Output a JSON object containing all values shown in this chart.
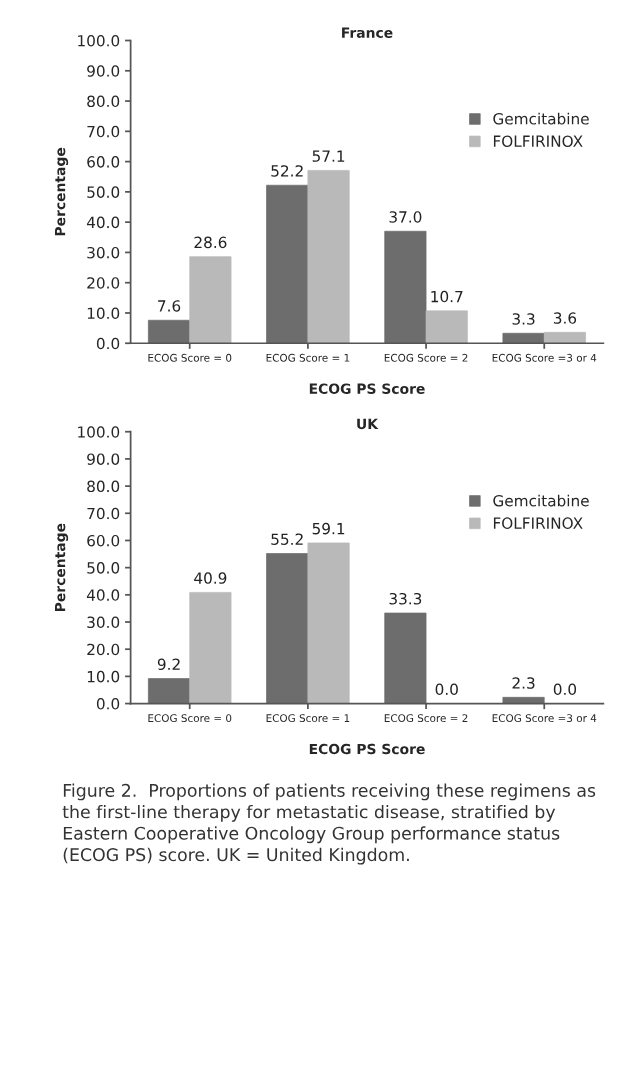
{
  "chart_data": [
    {
      "type": "bar",
      "title": "France",
      "xlabel": "ECOG PS Score",
      "ylabel": "Percentage",
      "categories": [
        "ECOG Score = 0",
        "ECOG Score = 1",
        "ECOG Score = 2",
        "ECOG Score =3 or 4"
      ],
      "series": [
        {
          "name": "Gemcitabine",
          "color": "#6d6d6d",
          "values": [
            7.6,
            52.2,
            37.0,
            3.3
          ],
          "value_labels": [
            "7.6",
            "52.2",
            "37.0",
            "3.3"
          ]
        },
        {
          "name": "FOLFIRINOX",
          "color": "#b9b9b9",
          "values": [
            28.6,
            57.1,
            10.7,
            3.6
          ],
          "value_labels": [
            "28.6",
            "57.1",
            "10.7",
            "3.6"
          ]
        }
      ],
      "ylim": [
        0,
        100
      ],
      "yticks": [
        {
          "value": 0,
          "label": "0.0"
        },
        {
          "value": 10,
          "label": "10.0"
        },
        {
          "value": 20,
          "label": "20.0"
        },
        {
          "value": 30,
          "label": "30.0"
        },
        {
          "value": 40,
          "label": "40.0"
        },
        {
          "value": 50,
          "label": "50.0"
        },
        {
          "value": 60,
          "label": "60.0"
        },
        {
          "value": 70,
          "label": "70.0"
        },
        {
          "value": 80,
          "label": "80.0"
        },
        {
          "value": 90,
          "label": "90.0"
        },
        {
          "value": 100,
          "label": "100.0"
        }
      ],
      "legend": "right"
    },
    {
      "type": "bar",
      "title": "UK",
      "xlabel": "ECOG PS Score",
      "ylabel": "Percentage",
      "categories": [
        "ECOG Score = 0",
        "ECOG Score = 1",
        "ECOG Score = 2",
        "ECOG Score =3 or 4"
      ],
      "series": [
        {
          "name": "Gemcitabine",
          "color": "#6d6d6d",
          "values": [
            9.2,
            55.2,
            33.3,
            2.3
          ],
          "value_labels": [
            "9.2",
            "55.2",
            "33.3",
            "2.3"
          ]
        },
        {
          "name": "FOLFIRINOX",
          "color": "#b9b9b9",
          "values": [
            40.9,
            59.1,
            0.0,
            0.0
          ],
          "value_labels": [
            "40.9",
            "59.1",
            "0.0",
            "0.0"
          ]
        }
      ],
      "ylim": [
        0,
        100
      ],
      "yticks": [
        {
          "value": 0,
          "label": "0.0"
        },
        {
          "value": 10,
          "label": "10.0"
        },
        {
          "value": 20,
          "label": "20.0"
        },
        {
          "value": 30,
          "label": "30.0"
        },
        {
          "value": 40,
          "label": "40.0"
        },
        {
          "value": 50,
          "label": "50.0"
        },
        {
          "value": 60,
          "label": "60.0"
        },
        {
          "value": 70,
          "label": "70.0"
        },
        {
          "value": 80,
          "label": "80.0"
        },
        {
          "value": 90,
          "label": "90.0"
        },
        {
          "value": 100,
          "label": "100.0"
        }
      ],
      "legend": "right",
      "annotations": [
        "Figure 2.  Proportions of patients receiving these regimens as the first-line therapy for metastatic disease, stratified by Eastern Cooperative Oncology Group performance status (ECOG PS) score. UK = United Kingdom."
      ]
    }
  ]
}
